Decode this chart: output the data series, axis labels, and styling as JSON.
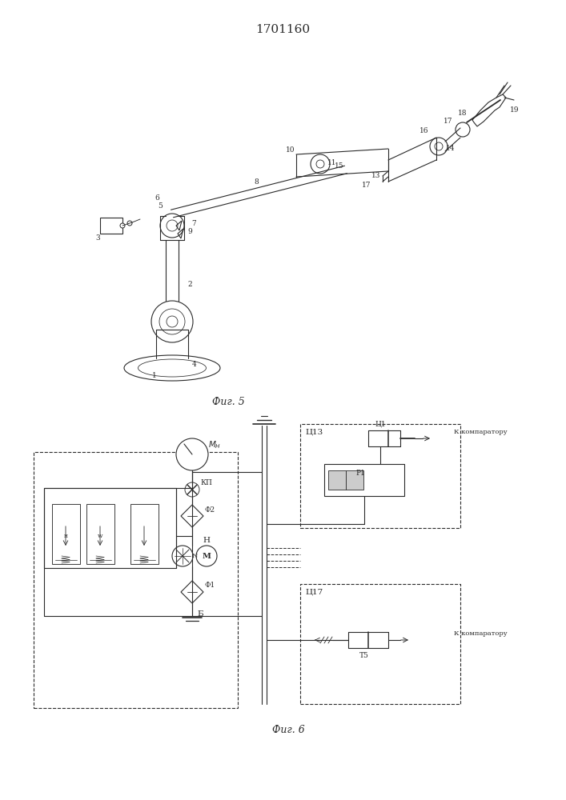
{
  "title": "1701160",
  "fig5_caption": "Фиг. 5",
  "fig6_caption": "Фиг. 6",
  "background_color": "#ffffff",
  "line_color": "#2a2a2a",
  "title_fontsize": 11,
  "caption_fontsize": 9,
  "label_fontsize": 7.5,
  "label_fontsize_small": 6.5
}
